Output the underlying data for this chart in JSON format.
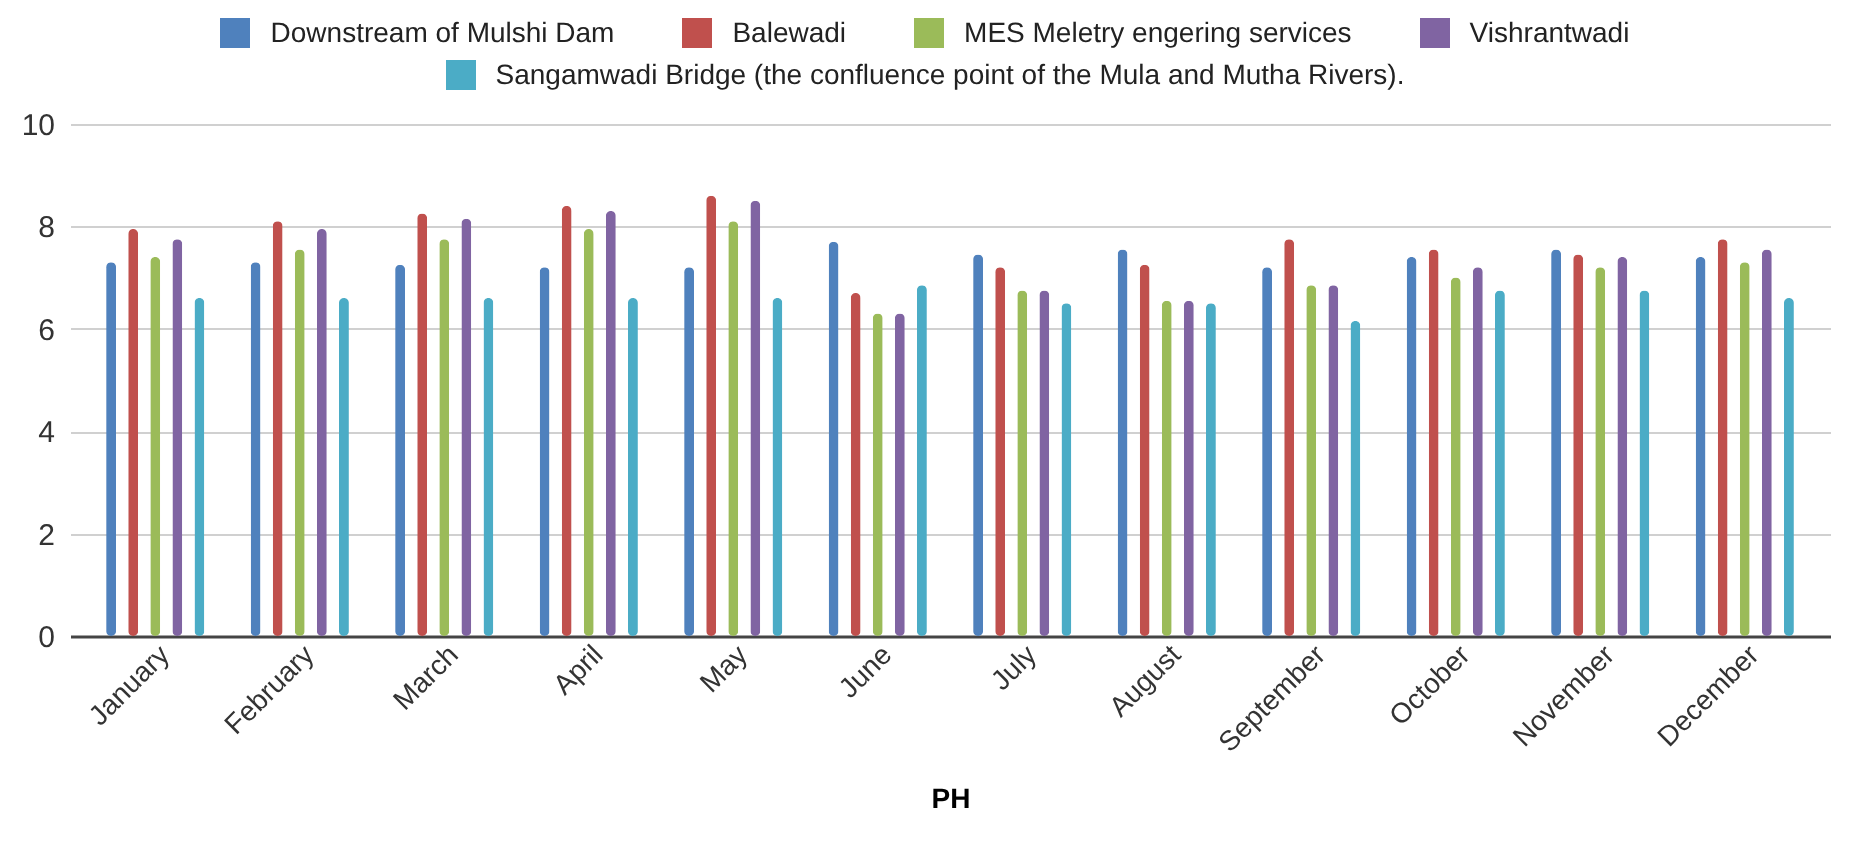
{
  "chart_data": {
    "type": "bar",
    "xlabel": "PH",
    "categories": [
      "January",
      "February",
      "March",
      "April",
      "May",
      "June",
      "July",
      "August",
      "September",
      "October",
      "November",
      "December"
    ],
    "series": [
      {
        "name": "Downstream of Mulshi Dam",
        "color": "#4f81bd",
        "values": [
          7.3,
          7.3,
          7.25,
          7.2,
          7.2,
          7.7,
          7.45,
          7.55,
          7.2,
          7.4,
          7.55,
          7.4
        ]
      },
      {
        "name": "Balewadi",
        "color": "#c0504d",
        "values": [
          7.95,
          8.1,
          8.25,
          8.4,
          8.6,
          6.7,
          7.2,
          7.25,
          7.75,
          7.55,
          7.45,
          7.75
        ]
      },
      {
        "name": "MES Meletry engering services",
        "color": "#9bbb59",
        "values": [
          7.4,
          7.55,
          7.75,
          7.95,
          8.1,
          6.3,
          6.75,
          6.55,
          6.85,
          7.0,
          7.2,
          7.3
        ]
      },
      {
        "name": "Vishrantwadi",
        "color": "#8064a2",
        "values": [
          7.75,
          7.95,
          8.15,
          8.3,
          8.5,
          6.3,
          6.75,
          6.55,
          6.85,
          7.2,
          7.4,
          7.55
        ]
      },
      {
        "name": "Sangamwadi Bridge (the confluence point of the Mula and Mutha Rivers).",
        "color": "#4bacc6",
        "values": [
          6.6,
          6.6,
          6.6,
          6.6,
          6.6,
          6.85,
          6.5,
          6.5,
          6.15,
          6.75,
          6.75,
          6.6
        ]
      }
    ],
    "ylim": [
      0,
      10
    ],
    "yticks": [
      0,
      2,
      4,
      6,
      8,
      10
    ],
    "grid": "y",
    "legend": "top"
  }
}
